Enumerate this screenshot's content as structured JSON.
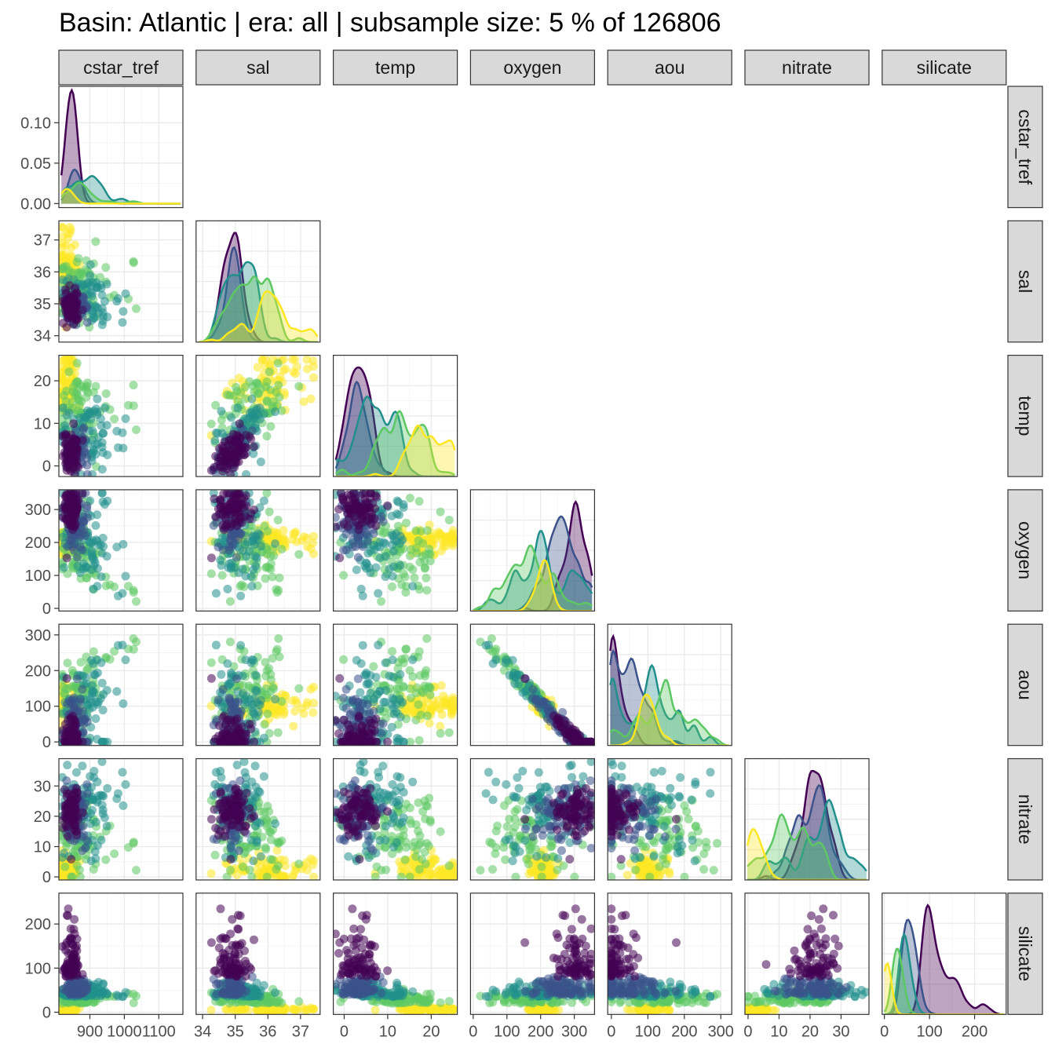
{
  "title": "Basin: Atlantic | era: all | subsample size: 5 % of 126806",
  "colors": {
    "palette": [
      "#440154",
      "#3b528b",
      "#21908c",
      "#5dc863",
      "#fde725"
    ],
    "strip_fill": "#d9d9d9",
    "grid": "#ebebeb"
  },
  "chart_data": {
    "type": "scatter",
    "layout": "pairs-matrix-lower-triangle",
    "variables": [
      {
        "name": "cstar_tref",
        "range": [
          810,
          1170
        ],
        "ticks": [
          900,
          1000,
          1100
        ],
        "tick_labels": [
          "900",
          "1000",
          "1100"
        ]
      },
      {
        "name": "sal",
        "range": [
          33.8,
          37.6
        ],
        "ticks": [
          34,
          35,
          36,
          37
        ],
        "tick_labels": [
          "34",
          "35",
          "36",
          "37"
        ]
      },
      {
        "name": "temp",
        "range": [
          -2.5,
          26
        ],
        "ticks": [
          0,
          10,
          20
        ],
        "tick_labels": [
          "0",
          "10",
          "20"
        ]
      },
      {
        "name": "oxygen",
        "range": [
          -8,
          360
        ],
        "ticks": [
          0,
          100,
          200,
          300
        ],
        "tick_labels": [
          "0",
          "100",
          "200",
          "300"
        ]
      },
      {
        "name": "aou",
        "range": [
          -10,
          330
        ],
        "ticks": [
          0,
          100,
          200,
          300
        ],
        "tick_labels": [
          "0",
          "100",
          "200",
          "300"
        ]
      },
      {
        "name": "nitrate",
        "range": [
          -1,
          39
        ],
        "ticks": [
          0,
          10,
          20,
          30
        ],
        "tick_labels": [
          "0",
          "10",
          "20",
          "30"
        ]
      },
      {
        "name": "silicate",
        "range": [
          -5,
          270
        ],
        "ticks": [
          0,
          100,
          200
        ],
        "tick_labels": [
          "0",
          "100",
          "200"
        ]
      }
    ],
    "density_axis": {
      "variable": "cstar_tref",
      "range": [
        -0.005,
        0.145
      ],
      "ticks": [
        0,
        0.05,
        0.1
      ],
      "tick_labels": [
        "0.00",
        "0.05",
        "0.10"
      ]
    },
    "color_groups": 5,
    "grid": true
  }
}
